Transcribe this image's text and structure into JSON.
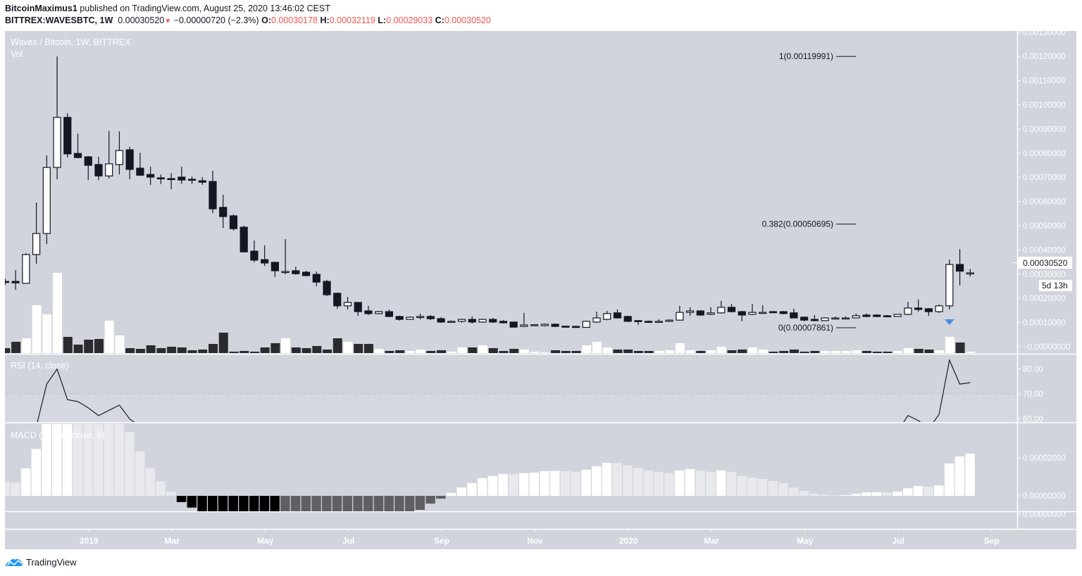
{
  "header": {
    "author": "BitcoinMaximus1",
    "published": " published on TradingView.com, August 25, 2020 13:46:02 CEST",
    "symbol": "BITTREX:WAVESBTC, 1W",
    "last": "0.00030520",
    "change": "−0.00000720 (−2.3%)",
    "o_label": "O:",
    "o": "0.00030178",
    "h_label": "H:",
    "h": "0.00032119",
    "l_label": "L:",
    "l": "0.00029033",
    "c_label": "C:",
    "c": "0.00030520"
  },
  "legend": {
    "main": "Waves / Bitcoin, 1W, BITTREX",
    "vol": "Vol",
    "rsi": "RSI (14, close)",
    "macd": "MACD (12, 26, close, 9)"
  },
  "price_label": "0.00030520",
  "countdown": "5d 13h",
  "logo_text": "TradingView",
  "colors": {
    "pane_bg": "#d1d4dc",
    "up": "#ffffff",
    "down": "#131722",
    "vol_down": "#2a2b2f",
    "macd_pos_rise": "#ffffff",
    "macd_pos_fall": "#e8e9ed",
    "macd_neg_fall": "#000000",
    "macd_neg_rise": "#606064",
    "change_down": "#ef5350",
    "signal_arrow": "#4a90e2"
  },
  "chart_data": [
    {
      "type": "candlestick",
      "title": "Waves / Bitcoin, 1W, BITTREX",
      "interval": "1W",
      "ylim": [
        -1e-05,
        0.0013
      ],
      "y_ticks": [
        "0.00130000",
        "0.00120000",
        "0.00110000",
        "0.00100000",
        "0.00090000",
        "0.00080000",
        "0.00070000",
        "0.00060000",
        "0.00050000",
        "0.00040000",
        "0.00030000",
        "0.00020000",
        "0.00010000",
        "−0.00000000"
      ],
      "x_ticks": [
        {
          "label": "2019",
          "index": 8
        },
        {
          "label": "Mar",
          "index": 16
        },
        {
          "label": "May",
          "index": 25
        },
        {
          "label": "Jul",
          "index": 33
        },
        {
          "label": "Sep",
          "index": 42
        },
        {
          "label": "Nov",
          "index": 51
        },
        {
          "label": "2020",
          "index": 60
        },
        {
          "label": "Mar",
          "index": 68
        },
        {
          "label": "May",
          "index": 77
        },
        {
          "label": "Jul",
          "index": 86
        },
        {
          "label": "Sep",
          "index": 95
        }
      ],
      "ohlc_columns": [
        "open",
        "high",
        "low",
        "close"
      ],
      "ohlc": [
        [
          0.00027,
          0.000282,
          0.000255,
          0.000266
        ],
        [
          0.00027,
          0.000317,
          0.000235,
          0.000264
        ],
        [
          0.000262,
          0.000387,
          0.00026,
          0.000381
        ],
        [
          0.000381,
          0.000596,
          0.000343,
          0.000468
        ],
        [
          0.000468,
          0.000791,
          0.000424,
          0.000741
        ],
        [
          0.000741,
          0.00119991,
          0.000692,
          0.000948
        ],
        [
          0.000948,
          0.000965,
          0.000782,
          0.000797
        ],
        [
          0.000799,
          0.000881,
          0.000779,
          0.000782
        ],
        [
          0.000785,
          0.000788,
          0.000689,
          0.00075
        ],
        [
          0.000753,
          0.000785,
          0.000689,
          0.000706
        ],
        [
          0.000706,
          0.000892,
          0.000695,
          0.000756
        ],
        [
          0.000753,
          0.00089,
          0.000712,
          0.000811
        ],
        [
          0.000814,
          0.000826,
          0.000692,
          0.000733
        ],
        [
          0.000738,
          0.000802,
          0.000706,
          0.000709
        ],
        [
          0.000712,
          0.000744,
          0.000669,
          0.000701
        ],
        [
          0.000698,
          0.000712,
          0.000672,
          0.000695
        ],
        [
          0.000695,
          0.000718,
          0.000651,
          0.000692
        ],
        [
          0.000701,
          0.000744,
          0.000674,
          0.000689
        ],
        [
          0.000692,
          0.000703,
          0.000672,
          0.000689
        ],
        [
          0.000686,
          0.000701,
          0.000669,
          0.00068
        ],
        [
          0.000683,
          0.000727,
          0.000552,
          0.00057
        ],
        [
          0.000576,
          0.000628,
          0.000491,
          0.000538
        ],
        [
          0.000541,
          0.000547,
          0.00048,
          0.000488
        ],
        [
          0.000494,
          0.0005,
          0.000392,
          0.000392
        ],
        [
          0.000395,
          0.000439,
          0.000349,
          0.000358
        ],
        [
          0.00036,
          0.000419,
          0.000334,
          0.000346
        ],
        [
          0.000349,
          0.000349,
          0.000288,
          0.000314
        ],
        [
          0.000308,
          0.000445,
          0.000299,
          0.000311
        ],
        [
          0.000314,
          0.000331,
          0.000297,
          0.000302
        ],
        [
          0.000308,
          0.000314,
          0.000291,
          0.000294
        ],
        [
          0.000299,
          0.000311,
          0.00025,
          0.000267
        ],
        [
          0.00027,
          0.000276,
          0.000209,
          0.000215
        ],
        [
          0.000221,
          0.000224,
          0.000157,
          0.000169
        ],
        [
          0.000169,
          0.000206,
          0.000154,
          0.000183
        ],
        [
          0.000183,
          0.000183,
          0.000128,
          0.000145
        ],
        [
          0.000148,
          0.000169,
          0.000131,
          0.000137
        ],
        [
          0.000137,
          0.000148,
          0.000134,
          0.000145
        ],
        [
          0.000145,
          0.000154,
          0.000122,
          0.000125
        ],
        [
          0.000125,
          0.000128,
          0.000108,
          0.000113
        ],
        [
          0.000113,
          0.000125,
          0.000113,
          0.000122
        ],
        [
          0.000122,
          0.000137,
          0.000113,
          0.000125
        ],
        [
          0.000125,
          0.000131,
          0.00011,
          0.000116
        ],
        [
          0.000116,
          0.000122,
          9.9e-05,
          0.000102
        ],
        [
          0.000104,
          0.000108,
          0.000102,
          0.000105
        ],
        [
          0.000105,
          0.000116,
          9.9e-05,
          0.000113
        ],
        [
          0.000113,
          0.000125,
          9.6e-05,
          0.000102
        ],
        [
          0.000102,
          0.000116,
          9.9e-05,
          0.000113
        ],
        [
          0.000113,
          0.000119,
          9.9e-05,
          0.000102
        ],
        [
          0.000105,
          0.00011,
          9.6e-05,
          9.9e-05
        ],
        [
          0.000102,
          0.000102,
          8e-05,
          8.1e-05
        ],
        [
          8.4e-05,
          0.00014,
          8.1e-05,
          9e-05
        ],
        [
          9e-05,
          9.3e-05,
          8.7e-05,
          9.1e-05
        ],
        [
          8.7e-05,
          9.6e-05,
          8.4e-05,
          9.3e-05
        ],
        [
          9.3e-05,
          9.6e-05,
          8.1e-05,
          8.4e-05
        ],
        [
          8.5e-05,
          8.7e-05,
          8.1e-05,
          8.4e-05
        ],
        [
          8.4e-05,
          8.7e-05,
          8e-05,
          8e-05
        ],
        [
          8e-05,
          0.000108,
          7.861e-05,
          0.000105
        ],
        [
          0.000102,
          0.000145,
          9.9e-05,
          0.000119
        ],
        [
          0.000113,
          0.000148,
          0.00011,
          0.000137
        ],
        [
          0.00014,
          0.000154,
          0.000116,
          0.000119
        ],
        [
          0.000125,
          0.000128,
          0.000102,
          0.000105
        ],
        [
          0.000108,
          0.00011,
          9e-05,
          0.000105
        ],
        [
          0.000105,
          0.000108,
          0.000102,
          0.000104
        ],
        [
          0.000104,
          0.000113,
          9.9e-05,
          0.000105
        ],
        [
          0.000105,
          0.000113,
          0.000102,
          0.00011
        ],
        [
          0.00011,
          0.000169,
          0.000108,
          0.000142
        ],
        [
          0.000142,
          0.000163,
          0.000128,
          0.000148
        ],
        [
          0.000148,
          0.000151,
          0.000128,
          0.000131
        ],
        [
          0.000134,
          0.000163,
          0.000131,
          0.00014
        ],
        [
          0.00014,
          0.000189,
          0.000137,
          0.000163
        ],
        [
          0.000163,
          0.000177,
          0.000142,
          0.000145
        ],
        [
          0.000145,
          0.000148,
          0.000105,
          0.000131
        ],
        [
          0.000134,
          0.000177,
          0.000131,
          0.000142
        ],
        [
          0.00014,
          0.000172,
          0.000137,
          0.000142
        ],
        [
          0.000145,
          0.000148,
          0.00014,
          0.000144
        ],
        [
          0.000145,
          0.000148,
          0.000134,
          0.000137
        ],
        [
          0.00014,
          0.000157,
          0.000119,
          0.000119
        ],
        [
          0.000122,
          0.000125,
          0.000105,
          0.00011
        ],
        [
          0.000113,
          0.000131,
          0.000105,
          0.000108
        ],
        [
          0.000108,
          0.000122,
          0.000108,
          0.000119
        ],
        [
          0.000118,
          0.000125,
          0.000116,
          0.000119
        ],
        [
          0.000118,
          0.000125,
          0.000116,
          0.000119
        ],
        [
          0.000119,
          0.000137,
          0.000119,
          0.000128
        ],
        [
          0.000131,
          0.000137,
          0.000122,
          0.000125
        ],
        [
          0.000131,
          0.000134,
          0.000122,
          0.000125
        ],
        [
          0.000128,
          0.000131,
          0.000122,
          0.000125
        ],
        [
          0.000125,
          0.000134,
          0.000125,
          0.000134
        ],
        [
          0.000134,
          0.000186,
          0.000131,
          0.00016
        ],
        [
          0.00016,
          0.000195,
          0.000145,
          0.000154
        ],
        [
          0.000157,
          0.00016,
          0.000128,
          0.000145
        ],
        [
          0.000145,
          0.000175,
          0.00014,
          0.000169
        ],
        [
          0.000169,
          0.00036,
          0.000154,
          0.00034
        ],
        [
          0.00034,
          0.000404,
          0.000253,
          0.0003124
        ],
        [
          0.00030178,
          0.00032119,
          0.00029033,
          0.0003052
        ]
      ],
      "volume_relative": [
        7,
        16,
        21,
        68,
        55,
        114,
        23,
        12,
        19,
        20,
        46,
        25,
        7,
        6,
        11,
        7,
        9,
        8,
        4,
        5,
        13,
        29,
        2,
        3,
        2,
        8,
        14,
        21,
        8,
        7,
        10,
        5,
        21,
        16,
        13,
        13,
        6,
        3,
        4,
        3,
        5,
        3,
        4,
        2,
        8,
        8,
        11,
        7,
        3,
        6,
        5,
        2,
        1,
        4,
        3,
        3,
        11,
        16,
        8,
        5,
        5,
        3,
        3,
        3,
        4,
        14,
        4,
        3,
        4,
        9,
        4,
        5,
        8,
        5,
        2,
        3,
        5,
        2,
        3,
        3,
        3,
        3,
        4,
        3,
        2,
        2,
        3,
        7,
        6,
        5,
        4,
        23,
        15,
        2
      ],
      "fib_levels": [
        {
          "label": "1(0.00119991)",
          "level": 1,
          "price": 0.00119991
        },
        {
          "label": "0.382(0.00050695)",
          "level": 0.382,
          "price": 0.00050695
        },
        {
          "label": "0(0.00007861)",
          "level": 0,
          "price": 7.861e-05
        }
      ],
      "signal_arrow": {
        "type": "down-triangle",
        "index": 91
      }
    },
    {
      "type": "line",
      "title": "RSI (14, close)",
      "ylim_visible": [
        58.7,
        85.5
      ],
      "y_ticks": [
        "80.00",
        "70.00",
        "60.00"
      ],
      "dashed_level": 70,
      "values": [
        null,
        null,
        null,
        57,
        73.9,
        79.9,
        67.7,
        66.9,
        64.4,
        61.3,
        63.4,
        65.5,
        59.9,
        57,
        null,
        null,
        null,
        null,
        null,
        null,
        null,
        null,
        null,
        null,
        null,
        null,
        null,
        null,
        null,
        null,
        null,
        null,
        null,
        null,
        null,
        null,
        null,
        null,
        null,
        null,
        null,
        null,
        null,
        null,
        null,
        null,
        null,
        null,
        null,
        null,
        null,
        null,
        null,
        null,
        null,
        null,
        null,
        null,
        null,
        null,
        null,
        null,
        null,
        null,
        null,
        null,
        null,
        null,
        null,
        null,
        null,
        null,
        null,
        null,
        null,
        null,
        null,
        null,
        null,
        null,
        null,
        null,
        null,
        null,
        null,
        null,
        55,
        61.3,
        59.3,
        56,
        61.8,
        83.5,
        73.9,
        74.5
      ]
    },
    {
      "type": "bar",
      "title": "MACD (12, 26, close, 9)",
      "ylim_visible": [
        -8.3e-06,
        3.78e-05
      ],
      "y_ticks": [
        "0.00002000",
        "0.00000000"
      ],
      "lower_pane_tick": "0.00000000",
      "histogram": [
        7.3e-06,
        6.9e-06,
        1.45e-05,
        2.47e-05,
        4e-05,
        4.6e-05,
        5e-05,
        4.9e-05,
        4.7e-05,
        4.4e-05,
        4.1e-05,
        3.8e-05,
        3.35e-05,
        2.36e-05,
        1.45e-05,
        7.6e-06,
        2.2e-06,
        -3.3e-06,
        -6.2e-06,
        -9.5e-06,
        -1.1e-05,
        -1.25e-05,
        -1.4e-05,
        -1.55e-05,
        -1.7e-05,
        -1.85e-05,
        -2e-05,
        -1.95e-05,
        -1.9e-05,
        -1.85e-05,
        -1.8e-05,
        -1.75e-05,
        -1.7e-05,
        -1.6e-05,
        -1.5e-05,
        -1.4e-05,
        -1.3e-05,
        -1.2e-05,
        -1.1e-05,
        -9.5e-06,
        -7.4e-06,
        -4.1e-06,
        -1.5e-06,
        1.5e-06,
        4.4e-06,
        6.7e-06,
        9.3e-06,
        1.04e-05,
        1.15e-05,
        1.14e-05,
        1.19e-05,
        1.22e-05,
        1.3e-05,
        1.31e-05,
        1.3e-05,
        1.26e-05,
        1.37e-05,
        1.56e-05,
        1.74e-05,
        1.73e-05,
        1.59e-05,
        1.48e-05,
        1.33e-05,
        1.26e-05,
        1.19e-05,
        1.33e-05,
        1.41e-05,
        1.33e-05,
        1.26e-05,
        1.33e-05,
        1.26e-05,
        1.04e-05,
        9.6e-06,
        8.9e-06,
        7.8e-06,
        6.7e-06,
        4.4e-06,
        2.6e-06,
        1.1e-06,
        7e-07,
        3e-07,
        4e-07,
        1.1e-06,
        1.8e-06,
        1.9e-06,
        1.8e-06,
        2.2e-06,
        4e-06,
        5.2e-06,
        4.8e-06,
        5.5e-06,
        1.7e-05,
        2.07e-05,
        2.22e-05
      ]
    }
  ]
}
